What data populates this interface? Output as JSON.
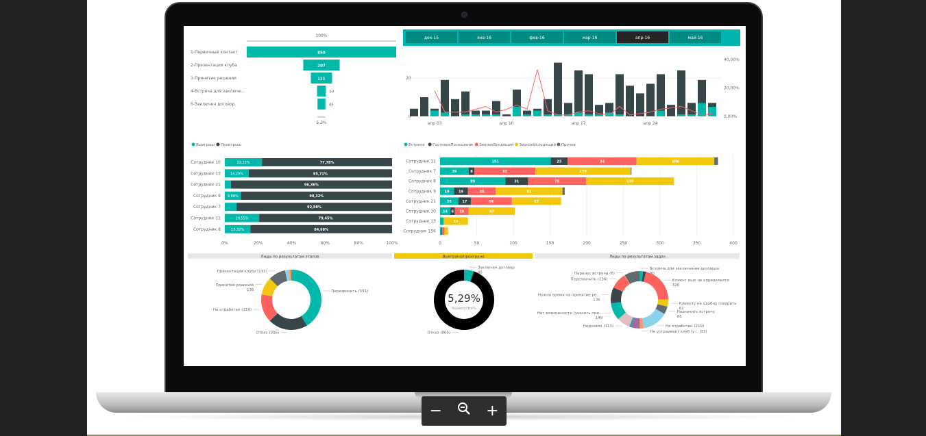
{
  "viewer": {
    "zoom_out_icon": "minus-icon",
    "zoom_reset_icon": "magnifier-minus-icon",
    "zoom_in_icon": "plus-icon",
    "zoom_out": "−",
    "zoom_in": "+"
  },
  "colors": {
    "teal": "#01b8aa",
    "dark": "#374649",
    "red": "#fd625e",
    "yellow": "#f2c80f",
    "gray": "#5f6b6d",
    "lightblue": "#8ad4eb",
    "orange": "#fe9666",
    "purple": "#a66999",
    "blue": "#3599b8",
    "pink": "#dfbfbf",
    "black": "#000000"
  },
  "funnel": {
    "top_label": "100%",
    "bottom_label": "5.3%",
    "stages": [
      {
        "label": "1-Первичный контакт",
        "value": 850
      },
      {
        "label": "2-Презентация клуба",
        "value": 207
      },
      {
        "label": "3-Принятие решения",
        "value": 121
      },
      {
        "label": "4-Встреча для заключе...",
        "value": 50
      },
      {
        "label": "5-Заключен договор",
        "value": 45
      }
    ]
  },
  "month_tabs": {
    "items": [
      "дек-15",
      "янв-16",
      "фев-16",
      "мар-16",
      "апр-16",
      "май-16"
    ],
    "selected": "апр-16"
  },
  "chart_data": [
    {
      "type": "bar+line",
      "name": "daily",
      "x_ticks": [
        {
          "day": 3,
          "label": "апр 03"
        },
        {
          "day": 10,
          "label": "апр 10"
        },
        {
          "day": 17,
          "label": "апр 17"
        },
        {
          "day": 24,
          "label": "апр 24"
        }
      ],
      "y_ticks": [
        "0",
        "20"
      ],
      "y2_ticks": [
        "0,00%",
        "20,00%",
        "40,00%"
      ],
      "ylim": [
        0,
        30
      ],
      "y2lim": [
        0,
        40
      ],
      "days": [
        1,
        2,
        3,
        4,
        5,
        6,
        7,
        8,
        9,
        10,
        11,
        12,
        13,
        14,
        15,
        16,
        17,
        18,
        19,
        20,
        21,
        22,
        23,
        24,
        25,
        26,
        27,
        28,
        29,
        30
      ],
      "totals": [
        4,
        10,
        4,
        19,
        9,
        13,
        3,
        3,
        8,
        1,
        14,
        3,
        4,
        9,
        28,
        7,
        24,
        22,
        6,
        7,
        22,
        16,
        12,
        17,
        22,
        6,
        24,
        7,
        19,
        7
      ],
      "wins": [
        0,
        0,
        3,
        2,
        0,
        1,
        1,
        1,
        1,
        0,
        5,
        1,
        3,
        1,
        1,
        1,
        2,
        1,
        1,
        2,
        1,
        0,
        0,
        0,
        3,
        0,
        1,
        1,
        7,
        5
      ],
      "rate_pct": [
        null,
        null,
        18,
        3,
        3,
        3,
        5,
        7,
        3,
        5,
        8,
        5,
        33,
        4,
        1,
        1,
        3,
        4,
        2,
        1,
        7,
        1,
        2,
        3,
        5,
        6,
        7,
        4,
        1,
        2
      ]
    },
    {
      "type": "bar",
      "stacked100": true,
      "legend": [
        "Выигрыш",
        "Проигрыш"
      ],
      "x_ticks": [
        "0%",
        "20%",
        "40%",
        "60%",
        "80%",
        "100%"
      ],
      "rows": [
        {
          "label": "Сотрудник 10",
          "win": 22.22,
          "lose": 77.78,
          "win_label": "22,22%",
          "lose_label": "77,78%"
        },
        {
          "label": "Сотрудник 13",
          "win": 14.29,
          "lose": 85.71,
          "win_label": "14,29%",
          "lose_label": "85,71%"
        },
        {
          "label": "Сотрудник 21",
          "win": 3.64,
          "lose": 96.36,
          "win_label": "",
          "lose_label": "96,36%"
        },
        {
          "label": "Сотрудник 9",
          "win": 9.68,
          "lose": 90.32,
          "win_label": "9,68%",
          "lose_label": "90,32%"
        },
        {
          "label": "Сотрудник 7",
          "win": 7.02,
          "lose": 92.98,
          "win_label": "",
          "lose_label": "92,98%"
        },
        {
          "label": "Сотрудник 11",
          "win": 20.55,
          "lose": 79.45,
          "win_label": "20,55%",
          "lose_label": "79,45%"
        },
        {
          "label": "Сотрудник 8",
          "win": 15.32,
          "lose": 84.68,
          "win_label": "15,32%",
          "lose_label": "84,68%"
        }
      ]
    },
    {
      "type": "bar",
      "stacked": true,
      "legend": [
        "Встреча",
        "ГостевоеПосещение",
        "ЗвонокВходящий",
        "ЗвонокИсходящий",
        "Прочее"
      ],
      "xlim": [
        0,
        400
      ],
      "x_ticks": [
        "0",
        "50",
        "100",
        "150",
        "200",
        "250",
        "300",
        "350",
        "400"
      ],
      "rows": [
        {
          "label": "Сотрудник 11",
          "values": [
            151,
            23,
            94,
            106,
            5
          ]
        },
        {
          "label": "Сотрудник 7",
          "values": [
            39,
            8,
            83,
            130,
            1
          ]
        },
        {
          "label": "Сотрудник 8",
          "values": [
            89,
            31,
            79,
            120,
            0
          ]
        },
        {
          "label": "Сотрудник 9",
          "values": [
            19,
            19,
            38,
            91,
            3
          ]
        },
        {
          "label": "Сотрудник 21",
          "values": [
            25,
            17,
            56,
            67,
            0
          ]
        },
        {
          "label": "Сотрудник 10",
          "values": [
            14,
            6,
            19,
            63,
            0
          ]
        },
        {
          "label": "Сотрудник 13",
          "values": [
            5,
            0,
            0,
            33,
            0
          ]
        },
        {
          "label": "Сотрудник 156",
          "values": [
            2,
            1,
            3,
            5,
            0
          ]
        }
      ]
    },
    {
      "type": "pie",
      "donut": true,
      "title": "Лиды по результатам этапов",
      "slices": [
        {
          "label": "Перезвонить (591)",
          "value": 591,
          "color": "teal"
        },
        {
          "label": "Отказ (305)",
          "value": 305,
          "color": "dark"
        },
        {
          "label": "Не отработан (219)",
          "value": 219,
          "color": "red"
        },
        {
          "label": "Принятие решения|136",
          "value": 136,
          "color": "yellow"
        },
        {
          "label": "Презентация клуба (132)",
          "value": 132,
          "color": "gray"
        },
        {
          "label": "",
          "value": 30,
          "color": "lightblue"
        },
        {
          "label": "",
          "value": 18,
          "color": "orange"
        }
      ]
    },
    {
      "type": "pie",
      "donut": true,
      "title": "Выиграно/проиграно",
      "center_value": "5,29%",
      "center_label": "Конверсия%",
      "slices": [
        {
          "label": "Заключен договор|45",
          "value": 45,
          "color": "teal"
        },
        {
          "label": "Отказ (805)",
          "value": 805,
          "color": "black"
        }
      ]
    },
    {
      "type": "pie",
      "donut": true,
      "title": "Лиды по результатам задач",
      "slices": [
        {
          "label": "Встреча для заключения договора|30",
          "value": 30,
          "color": "teal"
        },
        {
          "label": "",
          "value": 25,
          "color": "dark"
        },
        {
          "label": "Клиент еще не определился|320",
          "value": 320,
          "color": "red"
        },
        {
          "label": "Клиенту не удобно говорить|62",
          "value": 62,
          "color": "yellow"
        },
        {
          "label": "Назначить встречу|66",
          "value": 66,
          "color": "gray"
        },
        {
          "label": "Не отработан (219)",
          "value": 219,
          "color": "lightblue"
        },
        {
          "label": "Не устраивает клуб (у... (33)",
          "value": 33,
          "color": "orange"
        },
        {
          "label": "",
          "value": 70,
          "color": "purple"
        },
        {
          "label": "",
          "value": 20,
          "color": "blue"
        },
        {
          "label": "Недозвон (113)",
          "value": 113,
          "color": "pink"
        },
        {
          "label": "Нет возможности (указать при...|149",
          "value": 149,
          "color": "teal"
        },
        {
          "label": "Нужно время на принятие ре...|136",
          "value": 136,
          "color": "dark"
        },
        {
          "label": "Перезвонить (136)",
          "value": 136,
          "color": "red"
        },
        {
          "label": "Перенос встречи (6)",
          "value": 6,
          "color": "orange"
        },
        {
          "label": "",
          "value": 130,
          "color": "gray"
        }
      ]
    }
  ]
}
